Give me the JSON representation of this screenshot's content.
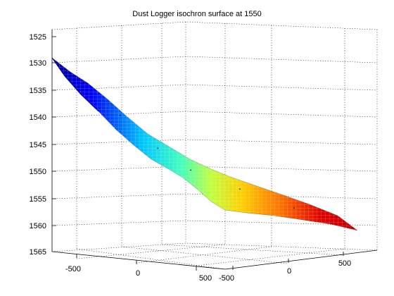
{
  "chart_data": {
    "type": "surface",
    "title": "Dust Logger isochron surface at 1550",
    "z_ticks": [
      "1525",
      "1530",
      "1535",
      "1540",
      "1545",
      "1550",
      "1555",
      "1560",
      "1565"
    ],
    "z_range": [
      1525,
      1565
    ],
    "z_direction": "reversed",
    "x_ticks": [
      "-500",
      "0",
      "500"
    ],
    "y_ticks": [
      "-500",
      "0",
      "500"
    ],
    "x_range": [
      -650,
      650
    ],
    "y_range": [
      -650,
      650
    ],
    "grid": true,
    "colormap": "jet",
    "surface_ridge": [
      {
        "x": -650,
        "y": -650,
        "z": 1529.5
      },
      {
        "x": -520,
        "y": -540,
        "z": 1533.5
      },
      {
        "x": -360,
        "y": -400,
        "z": 1539.5
      },
      {
        "x": -200,
        "y": -240,
        "z": 1545.5
      },
      {
        "x": -60,
        "y": -100,
        "z": 1549.5
      },
      {
        "x": 150,
        "y": 80,
        "z": 1553.0
      },
      {
        "x": 380,
        "y": 300,
        "z": 1556.5
      },
      {
        "x": 650,
        "y": 650,
        "z": 1561.0
      }
    ]
  }
}
